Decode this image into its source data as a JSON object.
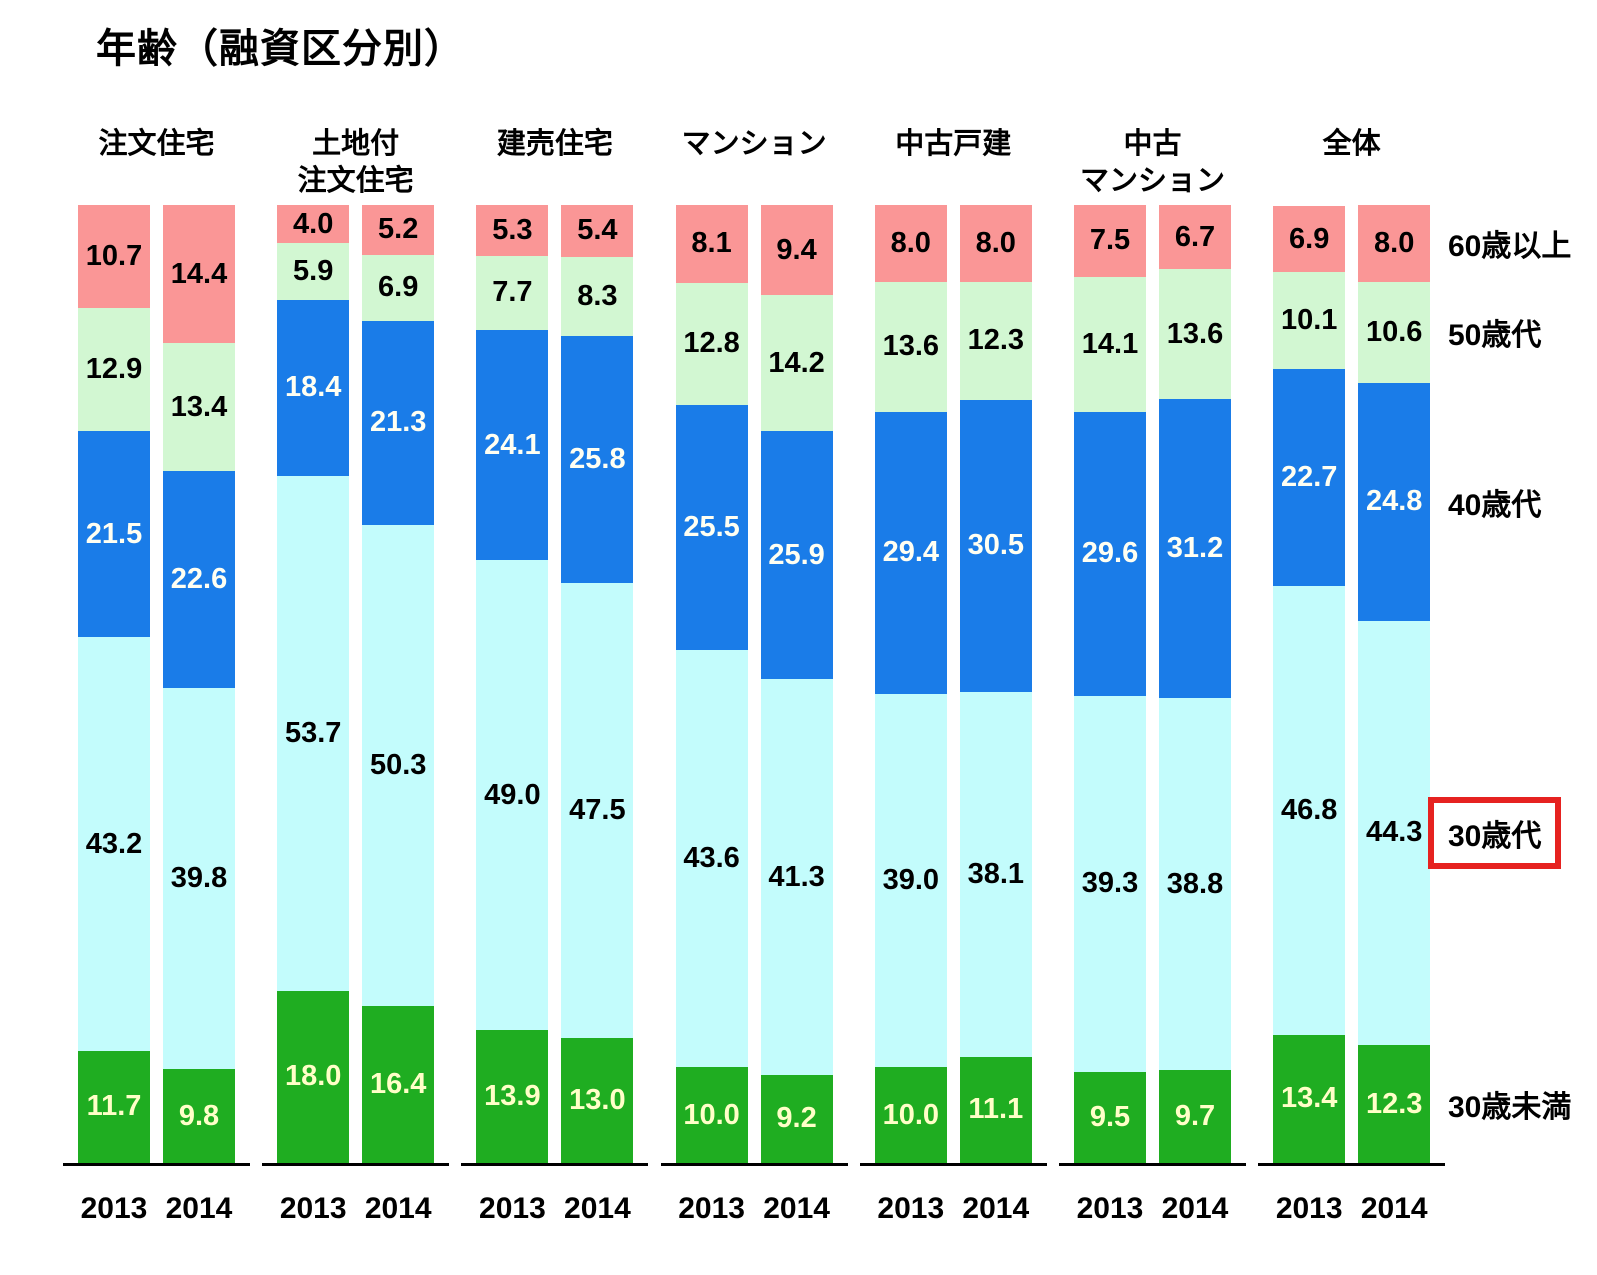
{
  "title": "年齢（融資区分別）",
  "legend": {
    "items_top_to_bottom": [
      "60歳以上",
      "50歳代",
      "40歳代",
      "30歳代",
      "30歳未満"
    ],
    "highlighted_item": "30歳代",
    "highlight_box_color": "#e62220"
  },
  "colors": {
    "segment_fills_bottom_to_top": [
      "#1fad21",
      "#c3fcfc",
      "#1a7ce8",
      "#d2f7d2",
      "#fa9696"
    ],
    "segment_label_colors_bottom_to_top": [
      "#ffffc8",
      "#000000",
      "#fffff2",
      "#000000",
      "#000000"
    ],
    "axis": "#000000",
    "text": "#000000"
  },
  "chart_data": {
    "type": "bar",
    "stacked": true,
    "unit": "%",
    "ylim": [
      0,
      100
    ],
    "grid": false,
    "segments_bottom_to_top": [
      "30歳未満",
      "30歳代",
      "40歳代",
      "50歳代",
      "60歳以上"
    ],
    "segment_keys_bottom_to_top": [
      "under-30",
      "30s",
      "40s",
      "50s",
      "60-plus"
    ],
    "years": [
      "2013",
      "2014"
    ],
    "groups": [
      {
        "label": "注文住宅",
        "bars": [
          {
            "year": "2013",
            "values": [
              "11.7",
              "43.2",
              "21.5",
              "12.9",
              "10.7"
            ]
          },
          {
            "year": "2014",
            "values": [
              "9.8",
              "39.8",
              "22.6",
              "13.4",
              "14.4"
            ]
          }
        ]
      },
      {
        "label": "土地付\n注文住宅",
        "bars": [
          {
            "year": "2013",
            "values": [
              "18.0",
              "53.7",
              "18.4",
              "5.9",
              "4.0"
            ]
          },
          {
            "year": "2014",
            "values": [
              "16.4",
              "50.3",
              "21.3",
              "6.9",
              "5.2"
            ]
          }
        ]
      },
      {
        "label": "建売住宅",
        "bars": [
          {
            "year": "2013",
            "values": [
              "13.9",
              "49.0",
              "24.1",
              "7.7",
              "5.3"
            ]
          },
          {
            "year": "2014",
            "values": [
              "13.0",
              "47.5",
              "25.8",
              "8.3",
              "5.4"
            ]
          }
        ]
      },
      {
        "label": "マンション",
        "bars": [
          {
            "year": "2013",
            "values": [
              "10.0",
              "43.6",
              "25.5",
              "12.8",
              "8.1"
            ]
          },
          {
            "year": "2014",
            "values": [
              "9.2",
              "41.3",
              "25.9",
              "14.2",
              "9.4"
            ]
          }
        ]
      },
      {
        "label": "中古戸建",
        "bars": [
          {
            "year": "2013",
            "values": [
              "10.0",
              "39.0",
              "29.4",
              "13.6",
              "8.0"
            ]
          },
          {
            "year": "2014",
            "values": [
              "11.1",
              "38.1",
              "30.5",
              "12.3",
              "8.0"
            ]
          }
        ]
      },
      {
        "label": "中古\nマンション",
        "bars": [
          {
            "year": "2013",
            "values": [
              "9.5",
              "39.3",
              "29.6",
              "14.1",
              "7.5"
            ]
          },
          {
            "year": "2014",
            "values": [
              "9.7",
              "38.8",
              "31.2",
              "13.6",
              "6.7"
            ]
          }
        ]
      },
      {
        "label": "全体",
        "bars": [
          {
            "year": "2013",
            "values": [
              "13.4",
              "46.8",
              "22.7",
              "10.1",
              "6.9"
            ]
          },
          {
            "year": "2014",
            "values": [
              "12.3",
              "44.3",
              "24.8",
              "10.6",
              "8.0"
            ]
          }
        ]
      }
    ]
  }
}
